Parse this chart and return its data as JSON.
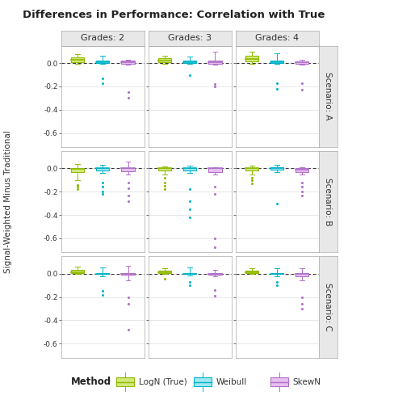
{
  "title": "Differences in Performance: Correlation with True",
  "col_labels": [
    "Grades: 2",
    "Grades: 3",
    "Grades: 4"
  ],
  "row_labels": [
    "Scenario: A",
    "Scenario: B",
    "Scenario: C"
  ],
  "ylabel": "Signal-Weighted Minus Traditional",
  "methods": [
    "LogN (True)",
    "Weibull",
    "SkewN"
  ],
  "method_colors": [
    "#8fba00",
    "#00b4c8",
    "#b070c8"
  ],
  "method_fill_colors": [
    "#d4e87a",
    "#a0e8f0",
    "#e8c0f0"
  ],
  "ylim": [
    -0.72,
    0.15
  ],
  "yticks": [
    0.0,
    -0.2,
    -0.4,
    -0.6
  ],
  "background_panel": "#ffffff",
  "background_strip": "#e8e8e8",
  "box_data": {
    "A": {
      "2": {
        "LogN": {
          "q1": 0.01,
          "median": 0.03,
          "q3": 0.05,
          "whisker_low": -0.005,
          "whisker_high": 0.075,
          "outliers": []
        },
        "Weibull": {
          "q1": 0.0,
          "median": 0.01,
          "q3": 0.02,
          "whisker_low": -0.005,
          "whisker_high": 0.065,
          "outliers": [
            -0.13,
            -0.17
          ]
        },
        "SkewN": {
          "q1": -0.005,
          "median": 0.005,
          "q3": 0.02,
          "whisker_low": -0.01,
          "whisker_high": 0.03,
          "outliers": [
            -0.25,
            -0.3
          ]
        }
      },
      "3": {
        "LogN": {
          "q1": 0.01,
          "median": 0.025,
          "q3": 0.04,
          "whisker_low": -0.005,
          "whisker_high": 0.065,
          "outliers": []
        },
        "Weibull": {
          "q1": 0.0,
          "median": 0.01,
          "q3": 0.02,
          "whisker_low": -0.005,
          "whisker_high": 0.055,
          "outliers": [
            -0.1
          ]
        },
        "SkewN": {
          "q1": -0.005,
          "median": 0.005,
          "q3": 0.02,
          "whisker_low": -0.01,
          "whisker_high": 0.1,
          "outliers": [
            -0.18,
            -0.2
          ]
        }
      },
      "4": {
        "LogN": {
          "q1": 0.015,
          "median": 0.035,
          "q3": 0.06,
          "whisker_low": -0.005,
          "whisker_high": 0.095,
          "outliers": []
        },
        "Weibull": {
          "q1": 0.0,
          "median": 0.01,
          "q3": 0.025,
          "whisker_low": -0.005,
          "whisker_high": 0.085,
          "outliers": [
            -0.17,
            -0.22
          ]
        },
        "SkewN": {
          "q1": -0.005,
          "median": 0.005,
          "q3": 0.015,
          "whisker_low": -0.01,
          "whisker_high": 0.03,
          "outliers": [
            -0.17,
            -0.23
          ]
        }
      }
    },
    "B": {
      "2": {
        "LogN": {
          "q1": -0.03,
          "median": -0.005,
          "q3": 0.005,
          "whisker_low": -0.1,
          "whisker_high": 0.04,
          "outliers": [
            -0.14,
            -0.16,
            -0.18
          ]
        },
        "Weibull": {
          "q1": -0.015,
          "median": 0.0,
          "q3": 0.005,
          "whisker_low": -0.04,
          "whisker_high": 0.03,
          "outliers": [
            -0.12,
            -0.16,
            -0.2,
            -0.22
          ]
        },
        "SkewN": {
          "q1": -0.025,
          "median": 0.0,
          "q3": 0.005,
          "whisker_low": -0.05,
          "whisker_high": 0.06,
          "outliers": [
            -0.12,
            -0.17,
            -0.23,
            -0.28
          ]
        }
      },
      "3": {
        "LogN": {
          "q1": -0.015,
          "median": 0.0,
          "q3": 0.005,
          "whisker_low": -0.05,
          "whisker_high": 0.02,
          "outliers": [
            -0.08,
            -0.12,
            -0.15,
            -0.18
          ]
        },
        "Weibull": {
          "q1": -0.015,
          "median": 0.0,
          "q3": 0.005,
          "whisker_low": -0.04,
          "whisker_high": 0.025,
          "outliers": [
            -0.18,
            -0.28,
            -0.35,
            -0.42
          ]
        },
        "SkewN": {
          "q1": -0.03,
          "median": 0.0,
          "q3": 0.005,
          "whisker_low": -0.05,
          "whisker_high": 0.01,
          "outliers": [
            -0.16,
            -0.22,
            -0.6,
            -0.68
          ]
        }
      },
      "4": {
        "LogN": {
          "q1": -0.015,
          "median": 0.0,
          "q3": 0.005,
          "whisker_low": -0.05,
          "whisker_high": 0.025,
          "outliers": [
            -0.08,
            -0.1,
            -0.13
          ]
        },
        "Weibull": {
          "q1": -0.01,
          "median": 0.0,
          "q3": 0.01,
          "whisker_low": -0.03,
          "whisker_high": 0.03,
          "outliers": [
            -0.3
          ]
        },
        "SkewN": {
          "q1": -0.03,
          "median": -0.01,
          "q3": 0.0,
          "whisker_low": -0.05,
          "whisker_high": 0.01,
          "outliers": [
            -0.12,
            -0.16,
            -0.2,
            -0.23
          ]
        }
      }
    },
    "C": {
      "2": {
        "LogN": {
          "q1": 0.005,
          "median": 0.015,
          "q3": 0.03,
          "whisker_low": -0.005,
          "whisker_high": 0.06,
          "outliers": []
        },
        "Weibull": {
          "q1": -0.005,
          "median": 0.0,
          "q3": 0.005,
          "whisker_low": -0.02,
          "whisker_high": 0.055,
          "outliers": [
            -0.15,
            -0.18
          ]
        },
        "SkewN": {
          "q1": -0.01,
          "median": 0.0,
          "q3": 0.005,
          "whisker_low": -0.06,
          "whisker_high": 0.07,
          "outliers": [
            -0.2,
            -0.26,
            -0.48
          ]
        }
      },
      "3": {
        "LogN": {
          "q1": 0.005,
          "median": 0.015,
          "q3": 0.025,
          "whisker_low": -0.005,
          "whisker_high": 0.05,
          "outliers": [
            -0.04
          ]
        },
        "Weibull": {
          "q1": -0.005,
          "median": 0.0,
          "q3": 0.005,
          "whisker_low": -0.015,
          "whisker_high": 0.055,
          "outliers": [
            -0.07,
            -0.1
          ]
        },
        "SkewN": {
          "q1": -0.01,
          "median": 0.0,
          "q3": 0.005,
          "whisker_low": -0.025,
          "whisker_high": 0.035,
          "outliers": [
            -0.14,
            -0.19
          ]
        }
      },
      "4": {
        "LogN": {
          "q1": 0.005,
          "median": 0.015,
          "q3": 0.025,
          "whisker_low": -0.005,
          "whisker_high": 0.05,
          "outliers": []
        },
        "Weibull": {
          "q1": -0.005,
          "median": 0.0,
          "q3": 0.005,
          "whisker_low": -0.02,
          "whisker_high": 0.05,
          "outliers": [
            -0.07,
            -0.1
          ]
        },
        "SkewN": {
          "q1": -0.02,
          "median": -0.005,
          "q3": 0.005,
          "whisker_low": -0.06,
          "whisker_high": 0.045,
          "outliers": [
            -0.2,
            -0.26,
            -0.3
          ]
        }
      }
    }
  }
}
